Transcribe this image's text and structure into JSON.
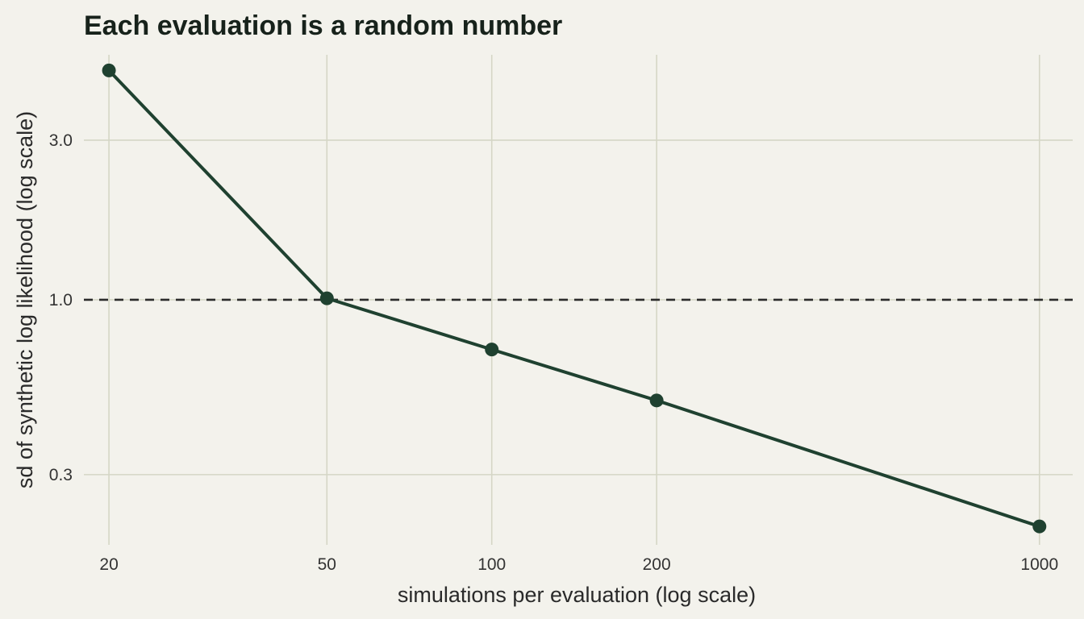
{
  "chart_data": {
    "type": "line",
    "title": "Each evaluation is a random number",
    "xlabel": "simulations per evaluation (log scale)",
    "ylabel": "sd of synthetic log likelihood (log scale)",
    "x_scale": "log",
    "y_scale": "log",
    "x": [
      20,
      50,
      100,
      200,
      1000
    ],
    "y": [
      4.85,
      1.01,
      0.71,
      0.5,
      0.21
    ],
    "x_ticks": [
      20,
      50,
      100,
      200,
      1000
    ],
    "x_tick_labels": [
      "20",
      "50",
      "100",
      "200",
      "1000"
    ],
    "y_ticks": [
      0.3,
      1.0,
      3.0
    ],
    "y_tick_labels": [
      "0.3",
      "1.0",
      "3.0"
    ],
    "xlim": [
      18.0,
      1150
    ],
    "ylim": [
      0.185,
      5.4
    ],
    "reference_line": {
      "orientation": "horizontal",
      "y": 1.0,
      "style": "dashed"
    },
    "grid": true,
    "colors": {
      "line": "#1f4130",
      "point": "#1f4130",
      "reference": "#2b2b2b",
      "grid": "#d5d6c6",
      "background": "#f3f2ec"
    }
  }
}
